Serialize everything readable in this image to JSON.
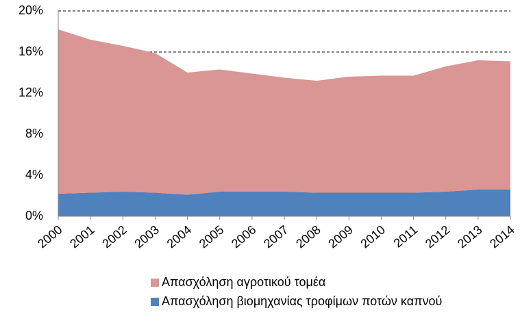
{
  "chart_data": {
    "type": "stacked-area",
    "categories": [
      "2000",
      "2001",
      "2002",
      "2003",
      "2004",
      "2005",
      "2006",
      "2007",
      "2008",
      "2009",
      "2010",
      "2011",
      "2012",
      "2013",
      "2014"
    ],
    "series": [
      {
        "name": "Απασχόληση αγροτικού τομέα",
        "color": "#d99694",
        "values": [
          16.0,
          14.9,
          14.2,
          13.6,
          11.9,
          11.9,
          11.5,
          11.1,
          10.9,
          11.3,
          11.4,
          11.4,
          12.2,
          12.6,
          12.5
        ]
      },
      {
        "name": "Απασχόληση βιομηχανίας τροφίμων ποτών καπνού",
        "color": "#4f81bd",
        "values": [
          2.2,
          2.3,
          2.4,
          2.3,
          2.1,
          2.4,
          2.4,
          2.4,
          2.3,
          2.3,
          2.3,
          2.3,
          2.4,
          2.6,
          2.6
        ]
      }
    ],
    "ylim": [
      0,
      20
    ],
    "yticks": [
      {
        "value": 0,
        "label": "0%"
      },
      {
        "value": 4,
        "label": "4%"
      },
      {
        "value": 8,
        "label": "8%"
      },
      {
        "value": 12,
        "label": "12%"
      },
      {
        "value": 16,
        "label": "16%"
      },
      {
        "value": 20,
        "label": "20%"
      }
    ],
    "grid": true
  }
}
